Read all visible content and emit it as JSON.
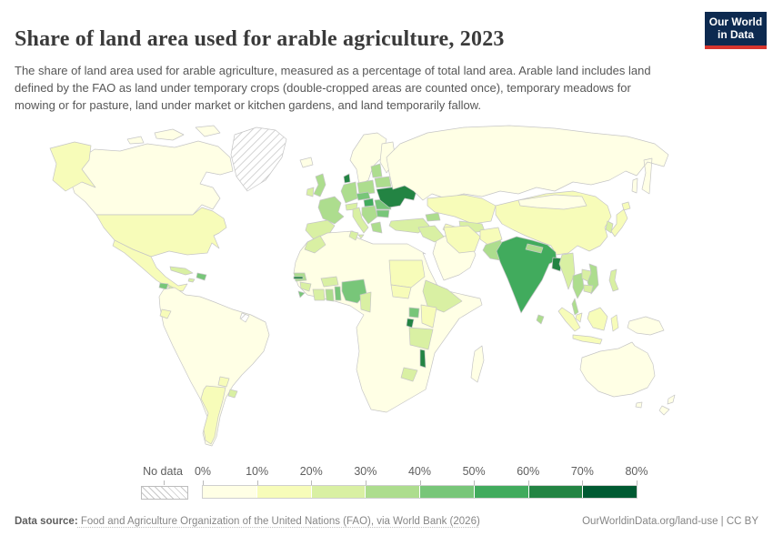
{
  "header": {
    "title": "Share of land area used for arable agriculture, 2023",
    "subtitle": "The share of land area used for arable agriculture, measured as a percentage of total land area. Arable land includes land defined by the FAO as land under temporary crops (double-cropped areas are counted once), temporary meadows for mowing or for pasture, land under market or kitchen gardens, and land temporarily fallow.",
    "logo": {
      "line1": "Our World",
      "line2": "in Data",
      "bg_color": "#0d2a50",
      "accent_color": "#d7352e"
    }
  },
  "legend": {
    "no_data_label": "No data",
    "tick_labels": [
      "0%",
      "10%",
      "20%",
      "30%",
      "40%",
      "50%",
      "60%",
      "70%",
      "80%"
    ]
  },
  "footer": {
    "source_prefix": "Data source:",
    "source_text": " Food and Agriculture Organization of the United Nations (FAO), via World Bank (2026)",
    "right_text": "OurWorldinData.org/land-use | CC BY"
  },
  "chart_data": {
    "type": "choropleth-world-map",
    "title": "Share of land area used for arable agriculture, 2023",
    "unit": "% of total land area",
    "legend_position": "bottom",
    "bins": [
      {
        "range": "0-10%",
        "color": "#ffffe5"
      },
      {
        "range": "10-20%",
        "color": "#f7fcb9"
      },
      {
        "range": "20-30%",
        "color": "#d9f0a3"
      },
      {
        "range": "30-40%",
        "color": "#addd8e"
      },
      {
        "range": "40-50%",
        "color": "#78c679"
      },
      {
        "range": "50-60%",
        "color": "#41ab5d"
      },
      {
        "range": "60-70%",
        "color": "#238443"
      },
      {
        "range": "70-80%",
        "color": "#005a32"
      }
    ],
    "no_data_style": "diagonal-hatch",
    "areas": {
      "GL": {
        "name": "Greenland",
        "bin": "no-data"
      },
      "GF": {
        "name": "French Guiana",
        "bin": "no-data"
      },
      "CA": {
        "name": "Canada",
        "bin": 0
      },
      "US": {
        "name": "United States",
        "bin": 1
      },
      "MX": {
        "name": "Mexico",
        "bin": 1
      },
      "GT": {
        "name": "Guatemala",
        "bin": 4
      },
      "CAM": {
        "name": "Central America (other)",
        "bin": 2
      },
      "CU": {
        "name": "Cuba",
        "bin": 2
      },
      "JM": {
        "name": "Jamaica",
        "bin": 2
      },
      "HISP": {
        "name": "Haiti and Dominican Republic",
        "bin": 4
      },
      "SAM": {
        "name": "South America (other)",
        "bin": 0
      },
      "EC": {
        "name": "Ecuador",
        "bin": 1
      },
      "AR": {
        "name": "Argentina",
        "bin": 1
      },
      "PY": {
        "name": "Paraguay",
        "bin": 1
      },
      "UY": {
        "name": "Uruguay",
        "bin": 2
      },
      "IS": {
        "name": "Iceland",
        "bin": 0
      },
      "SCAN": {
        "name": "Norway and Sweden",
        "bin": 0
      },
      "FI": {
        "name": "Finland",
        "bin": 0
      },
      "GB": {
        "name": "United Kingdom",
        "bin": 3
      },
      "IE": {
        "name": "Ireland",
        "bin": 2
      },
      "FR": {
        "name": "France",
        "bin": 3
      },
      "ES": {
        "name": "Spain and Portugal",
        "bin": 2
      },
      "DE": {
        "name": "Germany",
        "bin": 3
      },
      "DK": {
        "name": "Denmark",
        "bin": 6
      },
      "PL": {
        "name": "Poland",
        "bin": 3
      },
      "CZ": {
        "name": "Czechia and Slovakia",
        "bin": 4
      },
      "HU": {
        "name": "Hungary",
        "bin": 5
      },
      "AT": {
        "name": "Austria and Switzerland",
        "bin": 2
      },
      "IT": {
        "name": "Italy",
        "bin": 2
      },
      "BALK": {
        "name": "Western Balkans",
        "bin": 3
      },
      "GR": {
        "name": "Greece",
        "bin": 3
      },
      "RO": {
        "name": "Romania",
        "bin": 4
      },
      "BG": {
        "name": "Bulgaria",
        "bin": 4
      },
      "BALT": {
        "name": "Baltic states",
        "bin": 3
      },
      "BY": {
        "name": "Belarus",
        "bin": 3
      },
      "UA": {
        "name": "Ukraine",
        "bin": 6
      },
      "TR": {
        "name": "Turkey",
        "bin": 2
      },
      "RU": {
        "name": "Russia",
        "bin": 0
      },
      "KZ": {
        "name": "Kazakhstan",
        "bin": 1
      },
      "UZ": {
        "name": "Uzbekistan",
        "bin": 2
      },
      "TM": {
        "name": "Turkmenistan",
        "bin": 1
      },
      "CAU": {
        "name": "Caucasus",
        "bin": 3
      },
      "ARAB": {
        "name": "Arabian Peninsula",
        "bin": 0
      },
      "IQ": {
        "name": "Iraq and Syria",
        "bin": 2
      },
      "IR": {
        "name": "Iran",
        "bin": 1
      },
      "AF": {
        "name": "Afghanistan",
        "bin": 1
      },
      "PK": {
        "name": "Pakistan",
        "bin": 3
      },
      "IN": {
        "name": "India",
        "bin": 5
      },
      "NP": {
        "name": "Nepal",
        "bin": 3
      },
      "BD": {
        "name": "Bangladesh",
        "bin": 6
      },
      "LK": {
        "name": "Sri Lanka",
        "bin": 3
      },
      "MM": {
        "name": "Myanmar",
        "bin": 2
      },
      "TH": {
        "name": "Thailand",
        "bin": 3
      },
      "LA": {
        "name": "Laos",
        "bin": 2
      },
      "VN": {
        "name": "Vietnam",
        "bin": 3
      },
      "KH": {
        "name": "Cambodia",
        "bin": 2
      },
      "MY": {
        "name": "Malaysia",
        "bin": 1
      },
      "CN": {
        "name": "China",
        "bin": 1
      },
      "MN": {
        "name": "Mongolia",
        "bin": 0
      },
      "KR": {
        "name": "Korea",
        "bin": 2
      },
      "JP": {
        "name": "Japan",
        "bin": 1
      },
      "PH": {
        "name": "Philippines",
        "bin": 2
      },
      "ID": {
        "name": "Indonesia",
        "bin": 1
      },
      "PG": {
        "name": "Papua New Guinea",
        "bin": 0
      },
      "AU": {
        "name": "Australia",
        "bin": 0
      },
      "NZ": {
        "name": "New Zealand",
        "bin": 0
      },
      "AFR": {
        "name": "Africa (other)",
        "bin": 0
      },
      "MA": {
        "name": "Morocco",
        "bin": 2
      },
      "TN": {
        "name": "Tunisia",
        "bin": 2
      },
      "SN": {
        "name": "Senegal",
        "bin": 3
      },
      "GM": {
        "name": "Gambia",
        "bin": 6
      },
      "GN": {
        "name": "Guinea",
        "bin": 2
      },
      "SL": {
        "name": "Sierra Leone",
        "bin": 4
      },
      "CI": {
        "name": "Ivory Coast",
        "bin": 2
      },
      "GH": {
        "name": "Ghana",
        "bin": 3
      },
      "TG": {
        "name": "Togo and Benin",
        "bin": 4
      },
      "BF": {
        "name": "Burkina Faso",
        "bin": 2
      },
      "NG": {
        "name": "Nigeria",
        "bin": 4
      },
      "CM": {
        "name": "Cameroon",
        "bin": 2
      },
      "SD": {
        "name": "Sudan",
        "bin": 1
      },
      "SS": {
        "name": "South Sudan",
        "bin": 1
      },
      "ET": {
        "name": "Ethiopia",
        "bin": 2
      },
      "UG": {
        "name": "Uganda",
        "bin": 4
      },
      "KE": {
        "name": "Kenya",
        "bin": 1
      },
      "RW": {
        "name": "Rwanda and Burundi",
        "bin": 6
      },
      "TZ": {
        "name": "Tanzania",
        "bin": 2
      },
      "MW": {
        "name": "Malawi",
        "bin": 6
      },
      "ZW": {
        "name": "Zimbabwe",
        "bin": 2
      },
      "MG": {
        "name": "Madagascar",
        "bin": 0
      }
    }
  }
}
